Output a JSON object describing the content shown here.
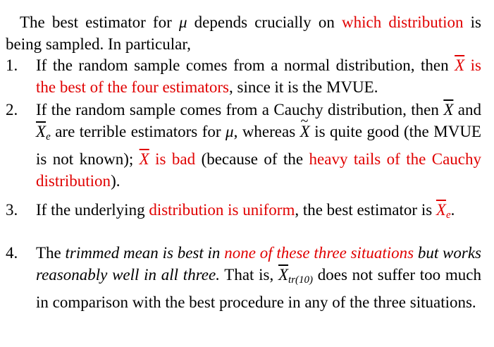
{
  "intro": {
    "t1": "The  best  estimator  for ",
    "mu": "μ",
    "t2": "  depends  crucially  on ",
    "r1": "which distribution",
    "t3": " is being sampled. In particular,"
  },
  "items": [
    {
      "num": "1.",
      "t1": "If the random sample comes from a normal distribution, then ",
      "xbar": "X",
      "r1": " is the best of the four estimators",
      "t2": ", since it is the MVUE."
    },
    {
      "num": "2.",
      "t1": "If the random sample comes from a Cauchy distribution, then ",
      "xbar": "X",
      "t2": " and ",
      "xe": "X",
      "xe_sub": "e",
      "t3": " are terrible estimators for ",
      "mu": "μ",
      "t4": ", whereas ",
      "xtilde": "X",
      "t5": " is quite good (the MVUE is not known); ",
      "r1_x": "X",
      "r1": " is bad",
      "t6": " (because of the ",
      "r2": "heavy tails of the Cauchy distribution",
      "t7": ")."
    },
    {
      "num": "3.",
      "t1": "If the underlying ",
      "r1": "distribution is uniform",
      "t2": ", the best estimator is ",
      "xe": "X",
      "xe_sub": "e",
      "t3": "."
    },
    {
      "num": "4.",
      "t1": "The ",
      "i1": "trimmed mean is best in ",
      "r1": "none of these three situations",
      "i2": " but works reasonably well in all three.",
      "t2": " That is, ",
      "xtr": "X",
      "xtr_sub": "tr(10)",
      "t3": " does not suffer too much in comparison with the best procedure in any of the three situations."
    }
  ]
}
